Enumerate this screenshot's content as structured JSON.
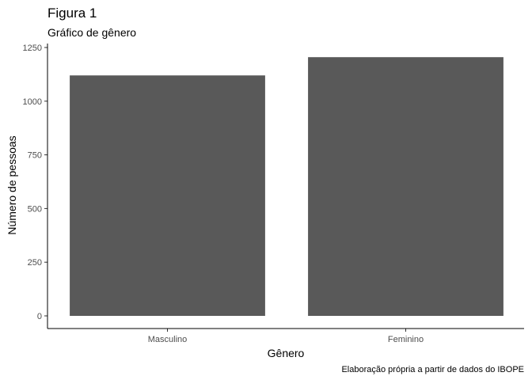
{
  "chart_data": {
    "type": "bar",
    "title": "Figura 1",
    "subtitle": "Gráfico de gênero",
    "xlabel": "Gênero",
    "ylabel": "Número de pessoas",
    "caption": "Elaboração própria a partir de dados do IBOPE",
    "categories": [
      "Masculino",
      "Feminino"
    ],
    "values": [
      1120,
      1205
    ],
    "ylim": [
      0,
      1250
    ],
    "yticks": [
      0,
      250,
      500,
      750,
      1000,
      1250
    ],
    "bar_color": "#595959",
    "grid": false,
    "legend": "none"
  }
}
